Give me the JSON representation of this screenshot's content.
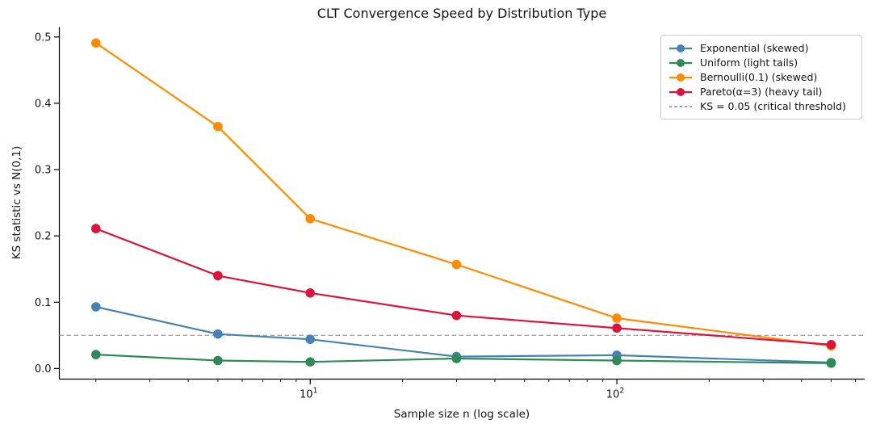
{
  "figure": {
    "background": "#ffffff",
    "text_color": "#141414"
  },
  "chart_data": {
    "type": "line",
    "title": "CLT Convergence Speed by Distribution Type",
    "xlabel": "Sample size n (log scale)",
    "ylabel": "KS statistic vs N(0,1)",
    "xscale": "log",
    "grid": false,
    "x": [
      2,
      5,
      10,
      30,
      100,
      500
    ],
    "xlim": [
      1.52,
      643
    ],
    "ylim": [
      -0.016,
      0.515
    ],
    "yticks": [
      0.0,
      0.1,
      0.2,
      0.3,
      0.4,
      0.5
    ],
    "ytick_labels": [
      "0.0",
      "0.1",
      "0.2",
      "0.3",
      "0.4",
      "0.5"
    ],
    "xticks": [
      {
        "value": 10,
        "base": "10",
        "exponent": "1"
      },
      {
        "value": 100,
        "base": "10",
        "exponent": "2"
      }
    ],
    "series": [
      {
        "name": "Exponential (skewed)",
        "color": "#4682B4",
        "marker": "circle",
        "values": [
          0.093,
          0.052,
          0.044,
          0.018,
          0.02,
          0.009
        ]
      },
      {
        "name": "Uniform (light tails)",
        "color": "#2E8B57",
        "marker": "circle",
        "values": [
          0.021,
          0.012,
          0.01,
          0.015,
          0.012,
          0.008
        ]
      },
      {
        "name": "Bernoulli(0.1) (skewed)",
        "color": "#FF8C00",
        "marker": "circle",
        "values": [
          0.491,
          0.365,
          0.226,
          0.157,
          0.076,
          0.034
        ]
      },
      {
        "name": "Pareto(α=3) (heavy tail)",
        "color": "#DC143C",
        "marker": "circle",
        "values": [
          0.211,
          0.14,
          0.114,
          0.08,
          0.061,
          0.036
        ]
      }
    ],
    "threshold_line": {
      "value": 0.05,
      "label": "KS = 0.05 (critical threshold)",
      "color": "#A6A6A6",
      "style": "dashed"
    },
    "legend": {
      "position": "upper-right"
    }
  }
}
